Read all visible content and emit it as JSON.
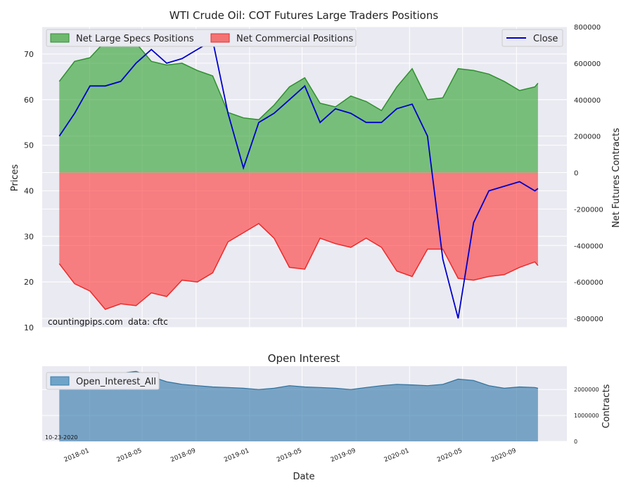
{
  "chart_data": [
    {
      "type": "area",
      "title": "WTI Crude Oil: COT Futures Large Traders Positions",
      "ylabel_left": "Prices",
      "ylabel_right": "Net Futures Contracts",
      "ylim_left": [
        10,
        76
      ],
      "ylim_right": [
        -850000,
        800000
      ],
      "yticks_left": [
        10,
        20,
        30,
        40,
        50,
        60,
        70
      ],
      "yticks_right": [
        800000,
        600000,
        400000,
        200000,
        0,
        -200000,
        -400000,
        -600000,
        -800000
      ],
      "legend_left": [
        "Net Large Specs Positions",
        "Net Commercial Positions"
      ],
      "legend_right": [
        "Close"
      ],
      "watermark": "countingpips.com",
      "source": "data: cftc",
      "colors": {
        "specs": "#2ca02c",
        "commercial": "#ff3b3b",
        "close": "#0000cc",
        "overlap": "#800080"
      },
      "x": [
        "2017-10-24",
        "2017-11-28",
        "2018-01-02",
        "2018-02-06",
        "2018-03-13",
        "2018-04-17",
        "2018-05-22",
        "2018-06-26",
        "2018-07-31",
        "2018-09-04",
        "2018-10-09",
        "2018-11-13",
        "2018-12-18",
        "2019-01-22",
        "2019-02-26",
        "2019-04-02",
        "2019-05-07",
        "2019-06-11",
        "2019-07-16",
        "2019-08-20",
        "2019-09-24",
        "2019-10-29",
        "2019-12-03",
        "2020-01-07",
        "2020-02-11",
        "2020-03-17",
        "2020-04-21",
        "2020-05-26",
        "2020-06-30",
        "2020-08-04",
        "2020-09-08",
        "2020-10-13",
        "2020-10-20"
      ],
      "series": [
        {
          "name": "Net Large Specs Positions",
          "values": [
            500000,
            610000,
            630000,
            720000,
            760000,
            710000,
            610000,
            590000,
            600000,
            560000,
            530000,
            330000,
            300000,
            290000,
            370000,
            470000,
            520000,
            380000,
            360000,
            420000,
            390000,
            340000,
            470000,
            570000,
            400000,
            410000,
            570000,
            560000,
            540000,
            500000,
            450000,
            470000,
            490000
          ]
        },
        {
          "name": "Net Commercial Positions",
          "values": [
            -500000,
            -610000,
            -650000,
            -750000,
            -720000,
            -730000,
            -660000,
            -680000,
            -590000,
            -600000,
            -550000,
            -380000,
            -330000,
            -280000,
            -360000,
            -520000,
            -530000,
            -360000,
            -390000,
            -410000,
            -360000,
            -410000,
            -540000,
            -570000,
            -420000,
            -420000,
            -580000,
            -590000,
            -570000,
            -560000,
            -520000,
            -490000,
            -510000
          ]
        },
        {
          "name": "Close",
          "values": [
            52,
            57,
            63,
            63,
            64,
            68,
            71,
            68,
            69,
            71,
            73,
            57,
            45,
            55,
            57,
            60,
            63,
            55,
            58,
            57,
            55,
            55,
            58,
            59,
            52,
            25,
            12,
            33,
            40,
            41,
            42,
            40,
            40.5
          ]
        }
      ]
    },
    {
      "type": "area",
      "title": "Open Interest",
      "ylabel": "Contracts",
      "xlabel": "Date",
      "ylim": [
        0,
        2900000
      ],
      "yticks": [
        0,
        1000000,
        2000000
      ],
      "legend": [
        "Open_Interest_All"
      ],
      "date_label": "10-23-2020",
      "xtick_labels": [
        "2018-01",
        "2018-05",
        "2018-09",
        "2019-01",
        "2019-05",
        "2019-09",
        "2020-01",
        "2020-05",
        "2020-09"
      ],
      "color": "#3a7dac",
      "series": [
        {
          "name": "Open_Interest_All",
          "values": [
            2600000,
            2620000,
            2600000,
            2640000,
            2630000,
            2700000,
            2500000,
            2300000,
            2200000,
            2150000,
            2100000,
            2080000,
            2050000,
            2000000,
            2050000,
            2150000,
            2100000,
            2080000,
            2050000,
            2000000,
            2080000,
            2150000,
            2200000,
            2180000,
            2150000,
            2200000,
            2400000,
            2350000,
            2150000,
            2050000,
            2100000,
            2080000,
            2050000
          ]
        }
      ]
    }
  ]
}
